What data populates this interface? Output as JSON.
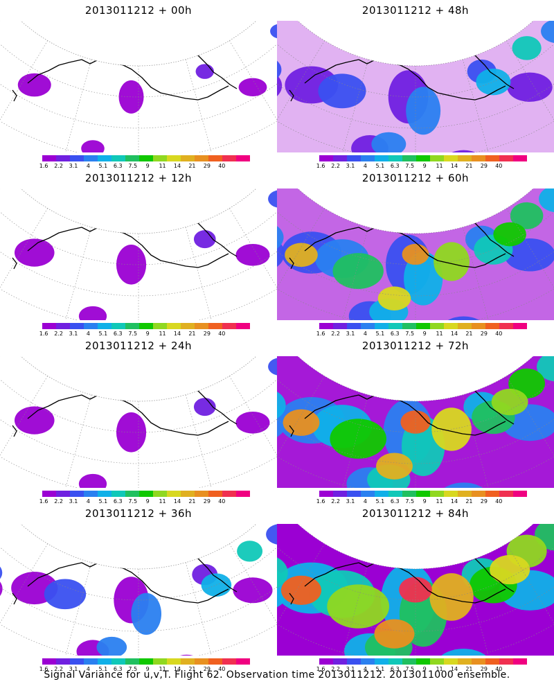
{
  "panels": [
    {
      "title": "2013011212 + 00h",
      "intensity": 0
    },
    {
      "title": "2013011212 + 48h",
      "intensity": 3
    },
    {
      "title": "2013011212 + 12h",
      "intensity": 1
    },
    {
      "title": "2013011212 + 60h",
      "intensity": 4
    },
    {
      "title": "2013011212 + 24h",
      "intensity": 1
    },
    {
      "title": "2013011212 + 72h",
      "intensity": 5
    },
    {
      "title": "2013011212 + 36h",
      "intensity": 2
    },
    {
      "title": "2013011212 + 84h",
      "intensity": 6
    }
  ],
  "colorbar": {
    "colors": [
      "#9b00d3",
      "#7020e0",
      "#3a50f0",
      "#2a80f0",
      "#10b0e8",
      "#10c8b8",
      "#20c060",
      "#10c800",
      "#90d820",
      "#d8d820",
      "#e0b020",
      "#e89020",
      "#f06020",
      "#f03050",
      "#f00080"
    ],
    "labels": [
      "1.6",
      "2.2",
      "3.1",
      "4",
      "5.1",
      "6.3",
      "7.5",
      "9",
      "11",
      "14",
      "21",
      "29",
      "40"
    ]
  },
  "caption": "Signal Variance for u,v,T. Flight 62. Observation time 2013011212. 2013011000 ensemble."
}
